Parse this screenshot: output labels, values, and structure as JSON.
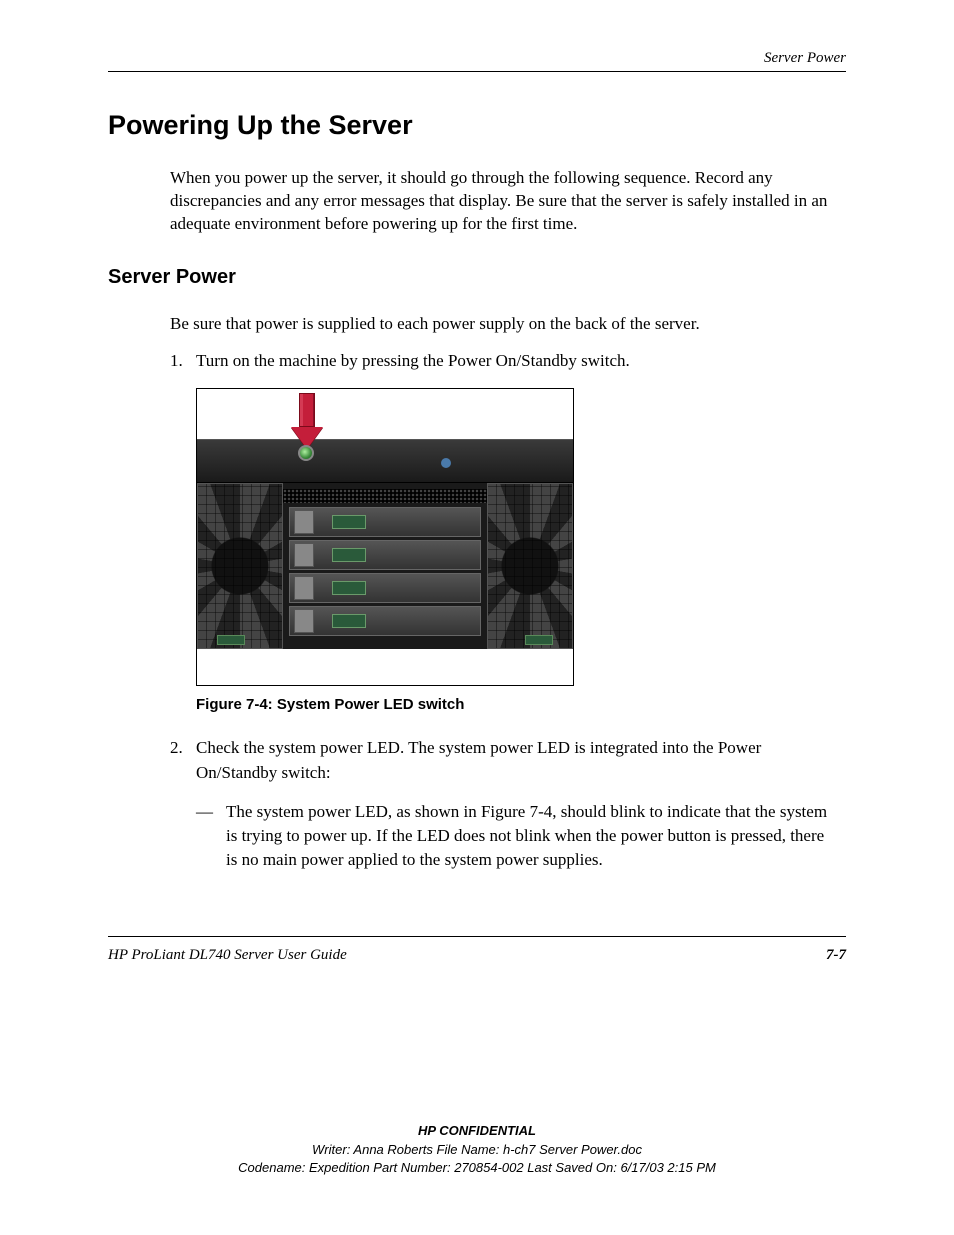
{
  "header": {
    "running_head": "Server Power"
  },
  "h1": "Powering Up the Server",
  "intro": "When you power up the server, it should go through the following sequence. Record any discrepancies and any error messages that display. Be sure that the server is safely installed in an adequate environment before powering up for the first time.",
  "h2": "Server Power",
  "para2": "Be sure that power is supplied to each power supply on the back of the server.",
  "steps": {
    "s1_num": "1.",
    "s1_text": "Turn on the machine by pressing the Power On/Standby switch.",
    "s2_num": "2.",
    "s2_text": "Check the system power LED. The system power LED is integrated into the Power On/Standby switch:"
  },
  "sub": {
    "dash": "—",
    "text": "The system power LED, as shown in Figure 7-4, should blink to indicate that the system is trying to power up. If the LED does not blink when the power button is pressed, there is no main power applied to the system power supplies."
  },
  "figure": {
    "caption": "Figure 7-4:  System Power LED switch",
    "background_color": "#ffffff",
    "bar_color": "#2a2a2a",
    "arrow_color": "#c41e3a",
    "led_color": "#3a8a3a",
    "drive_led_color": "#2a5a3a",
    "blue_dot_color": "#4a7aaa"
  },
  "footer": {
    "guide": "HP ProLiant DL740 Server User Guide",
    "page": "7-7"
  },
  "confidential": {
    "line1": "HP CONFIDENTIAL",
    "line2": "Writer: Anna Roberts File Name: h-ch7 Server Power.doc",
    "line3": "Codename: Expedition Part Number: 270854-002 Last Saved On: 6/17/03 2:15 PM"
  }
}
